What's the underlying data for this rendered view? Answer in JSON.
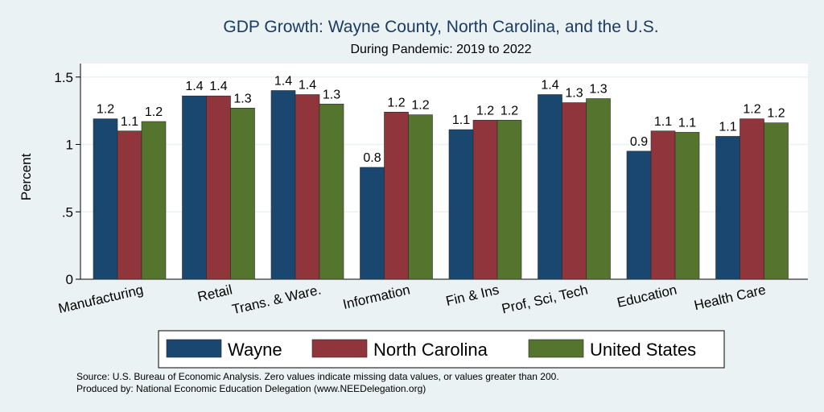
{
  "chart_data": {
    "type": "bar",
    "title": "GDP Growth: Wayne County, North Carolina, and the U.S.",
    "subtitle": "During Pandemic: 2019 to 2022",
    "xlabel": "",
    "ylabel": "Percent",
    "ylim": [
      0,
      1.6
    ],
    "yticks": [
      {
        "value": 0,
        "label": "0"
      },
      {
        "value": 0.5,
        "label": ".5"
      },
      {
        "value": 1,
        "label": "1"
      },
      {
        "value": 1.5,
        "label": "1.5"
      }
    ],
    "grid": true,
    "legend_position": "bottom",
    "categories": [
      "Manufacturing",
      "Retail",
      "Trans. & Ware.",
      "Information",
      "Fin & Ins",
      "Prof, Sci, Tech",
      "Education",
      "Health Care"
    ],
    "series": [
      {
        "name": "Wayne",
        "color": "#1a476f",
        "values": [
          1.19,
          1.36,
          1.4,
          0.83,
          1.11,
          1.37,
          0.95,
          1.06
        ],
        "labels": [
          "1.2",
          "1.4",
          "1.4",
          "0.8",
          "1.1",
          "1.4",
          "0.9",
          "1.1"
        ]
      },
      {
        "name": "North Carolina",
        "color": "#90353b",
        "values": [
          1.1,
          1.36,
          1.37,
          1.24,
          1.18,
          1.31,
          1.1,
          1.19
        ],
        "labels": [
          "1.1",
          "1.4",
          "1.4",
          "1.2",
          "1.2",
          "1.3",
          "1.1",
          "1.2"
        ]
      },
      {
        "name": "United States",
        "color": "#55752f",
        "values": [
          1.17,
          1.27,
          1.3,
          1.22,
          1.18,
          1.34,
          1.09,
          1.16
        ],
        "labels": [
          "1.2",
          "1.3",
          "1.3",
          "1.2",
          "1.2",
          "1.3",
          "1.1",
          "1.2"
        ]
      }
    ]
  },
  "source_note": "Source: U.S. Bureau of Economic Analysis. Zero values indicate missing data values, or values greater than 200.",
  "produced_note": "Produced by: National Economic Education Delegation (www.NEEDelegation.org)"
}
